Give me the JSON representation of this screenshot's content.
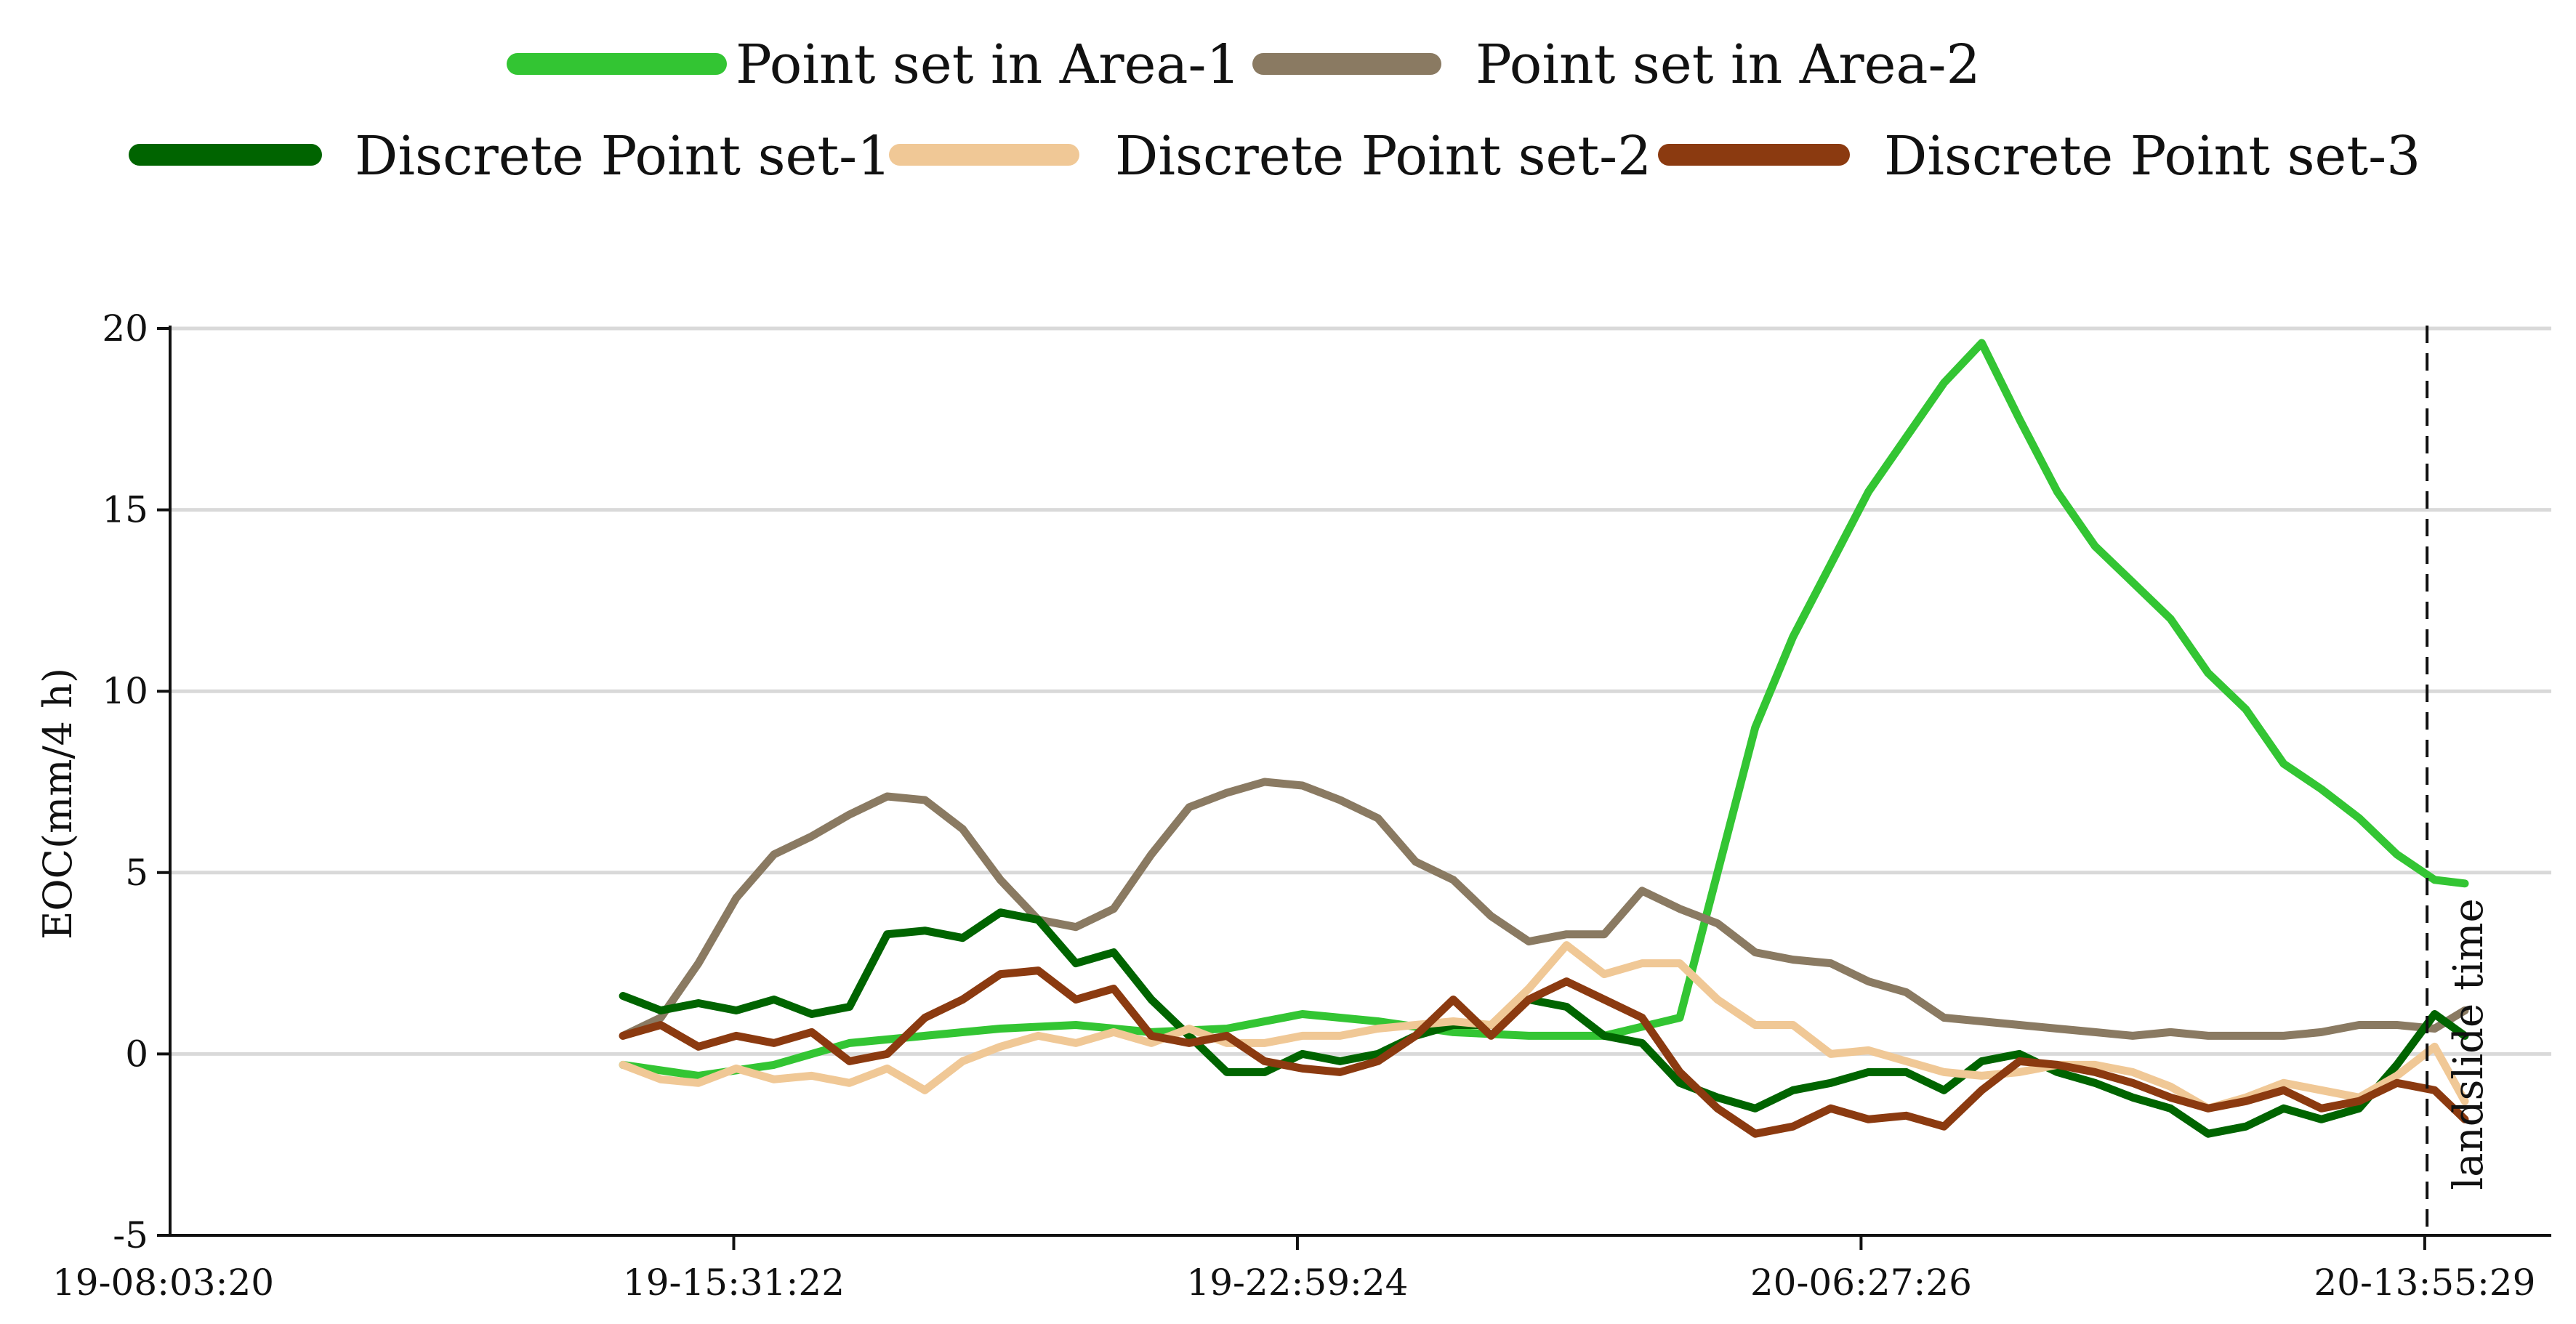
{
  "chart_data": {
    "type": "line",
    "title": "",
    "xlabel": "",
    "ylabel": "EOC(mm/4 h)",
    "ylim": [
      -5,
      20
    ],
    "yticks": [
      -5,
      0,
      5,
      10,
      15,
      20
    ],
    "ytick_labels": [
      "-5",
      "0",
      "5",
      "10",
      "15",
      "20"
    ],
    "x_tick_labels": [
      "19-08:03:20",
      "19-15:31:22",
      "19-22:59:24",
      "20-06:27:26",
      "20-13:55:29"
    ],
    "x_unit_note": "hours from 19-08:03:20; ticks every 7.4672 h",
    "xlim": [
      0,
      30.8
    ],
    "grid": "horizontal",
    "legend_position": "top",
    "annotation": {
      "label": "landslide time",
      "x": 29.9
    },
    "series": [
      {
        "name": "Point set in Area-1",
        "color": "#33c533",
        "x": [
          6.0,
          7.0,
          8.0,
          9.0,
          10.0,
          11.0,
          12.0,
          13.0,
          14.0,
          15.0,
          16.0,
          17.0,
          18.0,
          19.0,
          20.0,
          20.5,
          21.0,
          21.5,
          22.0,
          22.5,
          23.0,
          23.5,
          24.0,
          24.5,
          25.0,
          25.5,
          26.0,
          26.5,
          27.0,
          27.5,
          28.0,
          28.5,
          29.0,
          29.5,
          30.0,
          30.4
        ],
        "y": [
          -0.3,
          -0.6,
          -0.3,
          0.3,
          0.5,
          0.7,
          0.8,
          0.6,
          0.7,
          1.1,
          0.9,
          0.6,
          0.5,
          0.5,
          1.0,
          5.0,
          9.0,
          11.5,
          13.5,
          15.5,
          17.0,
          18.5,
          19.6,
          17.5,
          15.5,
          14.0,
          13.0,
          12.0,
          10.5,
          9.5,
          8.0,
          7.3,
          6.5,
          5.5,
          4.8,
          4.7
        ]
      },
      {
        "name": "Point set in Area-2",
        "color": "#8a7a62",
        "x": [
          6.0,
          6.5,
          7.0,
          7.5,
          8.0,
          8.5,
          9.0,
          9.5,
          10.0,
          10.5,
          11.0,
          11.5,
          12.0,
          12.5,
          13.0,
          13.5,
          14.0,
          14.5,
          15.0,
          15.5,
          16.0,
          16.5,
          17.0,
          17.5,
          18.0,
          18.5,
          19.0,
          19.5,
          20.0,
          20.5,
          21.0,
          21.5,
          22.0,
          22.5,
          23.0,
          23.5,
          24.0,
          24.5,
          25.0,
          25.5,
          26.0,
          26.5,
          27.0,
          27.5,
          28.0,
          28.5,
          29.0,
          29.5,
          30.0,
          30.4
        ],
        "y": [
          0.5,
          1.0,
          2.5,
          4.3,
          5.5,
          6.0,
          6.6,
          7.1,
          7.0,
          6.2,
          4.8,
          3.7,
          3.5,
          4.0,
          5.5,
          6.8,
          7.2,
          7.5,
          7.4,
          7.0,
          6.5,
          5.3,
          4.8,
          3.8,
          3.1,
          3.3,
          3.3,
          4.5,
          4.0,
          3.6,
          2.8,
          2.6,
          2.5,
          2.0,
          1.7,
          1.0,
          0.9,
          0.8,
          0.7,
          0.6,
          0.5,
          0.6,
          0.5,
          0.5,
          0.5,
          0.6,
          0.8,
          0.8,
          0.7,
          1.2
        ]
      },
      {
        "name": "Discrete Point set-1",
        "color": "#006400",
        "x": [
          6.0,
          6.5,
          7.0,
          7.5,
          8.0,
          8.5,
          9.0,
          9.5,
          10.0,
          10.5,
          11.0,
          11.5,
          12.0,
          12.5,
          13.0,
          13.5,
          14.0,
          14.5,
          15.0,
          15.5,
          16.0,
          16.5,
          17.0,
          17.5,
          18.0,
          18.5,
          19.0,
          19.5,
          20.0,
          20.5,
          21.0,
          21.5,
          22.0,
          22.5,
          23.0,
          23.5,
          24.0,
          24.5,
          25.0,
          25.5,
          26.0,
          26.5,
          27.0,
          27.5,
          28.0,
          28.5,
          29.0,
          29.5,
          30.0,
          30.4
        ],
        "y": [
          1.6,
          1.2,
          1.4,
          1.2,
          1.5,
          1.1,
          1.3,
          3.3,
          3.4,
          3.2,
          3.9,
          3.7,
          2.5,
          2.8,
          1.5,
          0.5,
          -0.5,
          -0.5,
          0.0,
          -0.2,
          0.0,
          0.5,
          0.8,
          0.8,
          1.5,
          1.3,
          0.5,
          0.3,
          -0.8,
          -1.2,
          -1.5,
          -1.0,
          -0.8,
          -0.5,
          -0.5,
          -1.0,
          -0.2,
          0.0,
          -0.5,
          -0.8,
          -1.2,
          -1.5,
          -2.2,
          -2.0,
          -1.5,
          -1.8,
          -1.5,
          -0.3,
          1.1,
          0.5
        ]
      },
      {
        "name": "Discrete Point set-2",
        "color": "#f0c896",
        "x": [
          6.0,
          6.5,
          7.0,
          7.5,
          8.0,
          8.5,
          9.0,
          9.5,
          10.0,
          10.5,
          11.0,
          11.5,
          12.0,
          12.5,
          13.0,
          13.5,
          14.0,
          14.5,
          15.0,
          15.5,
          16.0,
          16.5,
          17.0,
          17.5,
          18.0,
          18.5,
          19.0,
          19.5,
          20.0,
          20.5,
          21.0,
          21.5,
          22.0,
          22.5,
          23.0,
          23.5,
          24.0,
          24.5,
          25.0,
          25.5,
          26.0,
          26.5,
          27.0,
          27.5,
          28.0,
          28.5,
          29.0,
          29.5,
          30.0,
          30.4
        ],
        "y": [
          -0.3,
          -0.7,
          -0.8,
          -0.4,
          -0.7,
          -0.6,
          -0.8,
          -0.4,
          -1.0,
          -0.2,
          0.2,
          0.5,
          0.3,
          0.6,
          0.3,
          0.7,
          0.3,
          0.3,
          0.5,
          0.5,
          0.7,
          0.8,
          0.9,
          0.8,
          1.8,
          3.0,
          2.2,
          2.5,
          2.5,
          1.5,
          0.8,
          0.8,
          0.0,
          0.1,
          -0.2,
          -0.5,
          -0.6,
          -0.5,
          -0.3,
          -0.3,
          -0.5,
          -0.9,
          -1.5,
          -1.2,
          -0.8,
          -1.0,
          -1.2,
          -0.6,
          0.2,
          -1.3
        ]
      },
      {
        "name": "Discrete Point set-3",
        "color": "#8b3a10",
        "x": [
          6.0,
          6.5,
          7.0,
          7.5,
          8.0,
          8.5,
          9.0,
          9.5,
          10.0,
          10.5,
          11.0,
          11.5,
          12.0,
          12.5,
          13.0,
          13.5,
          14.0,
          14.5,
          15.0,
          15.5,
          16.0,
          16.5,
          17.0,
          17.5,
          18.0,
          18.5,
          19.0,
          19.5,
          20.0,
          20.5,
          21.0,
          21.5,
          22.0,
          22.5,
          23.0,
          23.5,
          24.0,
          24.5,
          25.0,
          25.5,
          26.0,
          26.5,
          27.0,
          27.5,
          28.0,
          28.5,
          29.0,
          29.5,
          30.0,
          30.4
        ],
        "y": [
          0.5,
          0.8,
          0.2,
          0.5,
          0.3,
          0.6,
          -0.2,
          0.0,
          1.0,
          1.5,
          2.2,
          2.3,
          1.5,
          1.8,
          0.5,
          0.3,
          0.5,
          -0.2,
          -0.4,
          -0.5,
          -0.2,
          0.5,
          1.5,
          0.5,
          1.5,
          2.0,
          1.5,
          1.0,
          -0.5,
          -1.5,
          -2.2,
          -2.0,
          -1.5,
          -1.8,
          -1.7,
          -2.0,
          -1.0,
          -0.2,
          -0.3,
          -0.5,
          -0.8,
          -1.2,
          -1.5,
          -1.3,
          -1.0,
          -1.5,
          -1.3,
          -0.8,
          -1.0,
          -1.8
        ]
      }
    ]
  }
}
